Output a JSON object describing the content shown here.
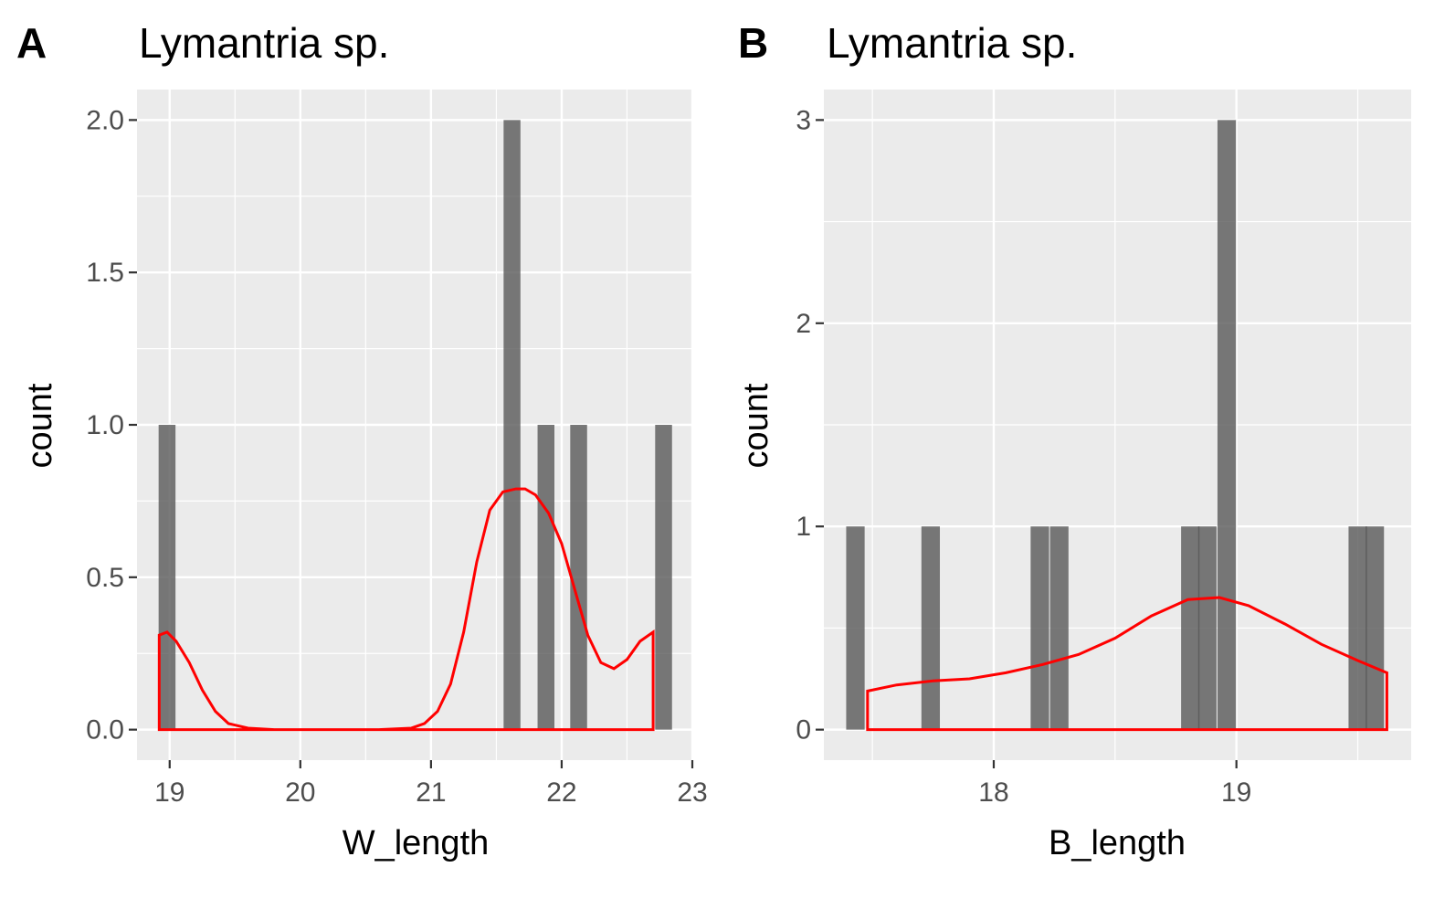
{
  "chart_data": [
    {
      "type": "bar",
      "tag": "A",
      "title": "Lymantria sp.",
      "xlabel": "W_length",
      "ylabel": "count",
      "xlim": [
        18.75,
        23.0
      ],
      "ylim": [
        -0.1,
        2.1
      ],
      "xticks": [
        19,
        20,
        21,
        22,
        23
      ],
      "xtick_labels": [
        "19",
        "20",
        "21",
        "22",
        "23"
      ],
      "yticks": [
        0.0,
        0.5,
        1.0,
        1.5,
        2.0
      ],
      "ytick_labels": [
        "0.0",
        "0.5",
        "1.0",
        "1.5",
        "2.0"
      ],
      "grid": true,
      "bin_width": 0.129,
      "bins": [
        {
          "x": 18.98,
          "count": 1
        },
        {
          "x": 21.62,
          "count": 2
        },
        {
          "x": 21.88,
          "count": 1
        },
        {
          "x": 22.13,
          "count": 1
        },
        {
          "x": 22.78,
          "count": 1
        }
      ],
      "density": {
        "color": "#ff0000",
        "x": [
          18.92,
          18.98,
          19.05,
          19.15,
          19.25,
          19.35,
          19.45,
          19.6,
          19.8,
          20.2,
          20.6,
          20.85,
          20.95,
          21.05,
          21.15,
          21.25,
          21.35,
          21.45,
          21.55,
          21.65,
          21.72,
          21.8,
          21.9,
          22.0,
          22.1,
          22.2,
          22.3,
          22.4,
          22.5,
          22.6,
          22.7
        ],
        "y": [
          0.31,
          0.32,
          0.29,
          0.22,
          0.13,
          0.06,
          0.02,
          0.005,
          0.0,
          0.0,
          0.0,
          0.005,
          0.02,
          0.06,
          0.15,
          0.32,
          0.55,
          0.72,
          0.78,
          0.79,
          0.79,
          0.77,
          0.71,
          0.61,
          0.46,
          0.31,
          0.22,
          0.2,
          0.23,
          0.29,
          0.32
        ]
      }
    },
    {
      "type": "bar",
      "tag": "B",
      "title": "Lymantria sp.",
      "xlabel": "B_length",
      "ylabel": "count",
      "xlim": [
        17.3,
        19.72
      ],
      "ylim": [
        -0.15,
        3.15
      ],
      "xticks": [
        18,
        19
      ],
      "xtick_labels": [
        "18",
        "19"
      ],
      "yticks": [
        0,
        1,
        2,
        3
      ],
      "ytick_labels": [
        "0",
        "1",
        "2",
        "3"
      ],
      "grid": true,
      "bin_width": 0.076,
      "bins": [
        {
          "x": 17.43,
          "count": 1
        },
        {
          "x": 17.74,
          "count": 1
        },
        {
          "x": 18.19,
          "count": 1
        },
        {
          "x": 18.27,
          "count": 1
        },
        {
          "x": 18.81,
          "count": 1
        },
        {
          "x": 18.88,
          "count": 1
        },
        {
          "x": 18.96,
          "count": 3
        },
        {
          "x": 19.5,
          "count": 1
        },
        {
          "x": 19.57,
          "count": 1
        }
      ],
      "density": {
        "color": "#ff0000",
        "x": [
          17.48,
          17.6,
          17.75,
          17.9,
          18.05,
          18.2,
          18.35,
          18.5,
          18.65,
          18.8,
          18.93,
          19.05,
          19.2,
          19.35,
          19.5,
          19.62
        ],
        "y": [
          0.19,
          0.22,
          0.24,
          0.25,
          0.28,
          0.32,
          0.37,
          0.45,
          0.56,
          0.64,
          0.65,
          0.61,
          0.52,
          0.42,
          0.34,
          0.28
        ]
      }
    }
  ]
}
